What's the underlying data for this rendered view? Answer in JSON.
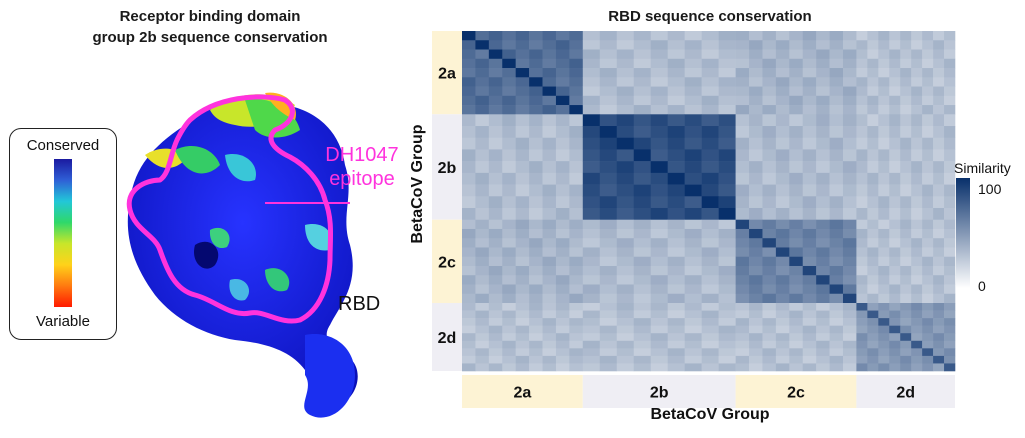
{
  "left_panel": {
    "title_line1": "Receptor binding domain",
    "title_line2": "group 2b sequence conservation",
    "legend": {
      "top_label": "Conserved",
      "bottom_label": "Variable",
      "gradient": [
        "#1a1aa0",
        "#2f5fd6",
        "#22c7d8",
        "#2fd86a",
        "#c8e62a",
        "#ffd21a",
        "#ff7a10",
        "#ff1a00"
      ]
    },
    "epitope_line1": "DH1047",
    "epitope_line2": "epitope",
    "rbd_label": "RBD",
    "epitope_color": "#ff33dd"
  },
  "chart_data": {
    "type": "heatmap",
    "title": "RBD sequence conservation",
    "xlabel": "BetaCoV Group",
    "ylabel": "BetaCoV Group",
    "groups": [
      "2a",
      "2b",
      "2c",
      "2d"
    ],
    "group_colors": [
      "#fdf3d4",
      "#efeef4",
      "#fdf3d4",
      "#efeef4"
    ],
    "colorbar": {
      "title": "Similarity",
      "min": 0,
      "max": 100,
      "ticks": [
        100,
        0
      ],
      "colors": [
        "#ffffff",
        "#08306b"
      ]
    },
    "block_similarity": [
      [
        70,
        32,
        36,
        30
      ],
      [
        32,
        85,
        33,
        30
      ],
      [
        36,
        33,
        60,
        30
      ],
      [
        30,
        30,
        30,
        50
      ]
    ]
  }
}
